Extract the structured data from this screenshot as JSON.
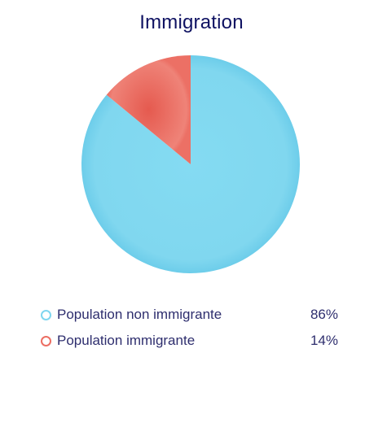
{
  "chart_data": {
    "type": "pie",
    "title": "Immigration",
    "slices": [
      {
        "label": "Population non immigrante",
        "value": 86,
        "display": "86%",
        "color": "#7fd6ef"
      },
      {
        "label": "Population immigrante",
        "value": 14,
        "display": "14%",
        "color": "#ec6e63"
      }
    ]
  }
}
